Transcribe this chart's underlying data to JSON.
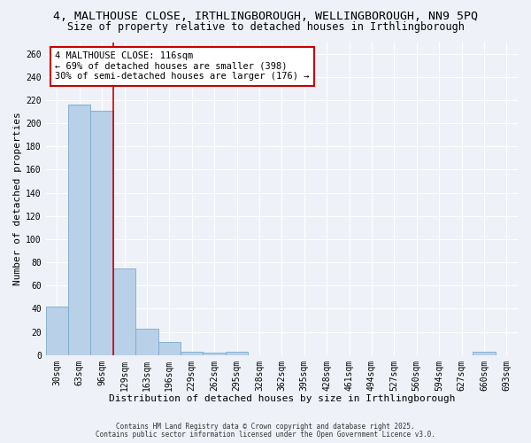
{
  "title1": "4, MALTHOUSE CLOSE, IRTHLINGBOROUGH, WELLINGBOROUGH, NN9 5PQ",
  "title2": "Size of property relative to detached houses in Irthlingborough",
  "categories": [
    "30sqm",
    "63sqm",
    "96sqm",
    "129sqm",
    "163sqm",
    "196sqm",
    "229sqm",
    "262sqm",
    "295sqm",
    "328sqm",
    "362sqm",
    "395sqm",
    "428sqm",
    "461sqm",
    "494sqm",
    "527sqm",
    "560sqm",
    "594sqm",
    "627sqm",
    "660sqm",
    "693sqm"
  ],
  "values": [
    42,
    216,
    211,
    75,
    23,
    11,
    3,
    2,
    3,
    0,
    0,
    0,
    0,
    0,
    0,
    0,
    0,
    0,
    0,
    3,
    0
  ],
  "bar_color": "#b8d0e8",
  "bar_edge_color": "#7aaaca",
  "vline_color": "#cc0000",
  "vline_x_index": 2.5,
  "annotation_text": "4 MALTHOUSE CLOSE: 116sqm\n← 69% of detached houses are smaller (398)\n30% of semi-detached houses are larger (176) →",
  "annotation_box_color": "#ffffff",
  "annotation_box_edge": "#cc0000",
  "xlabel": "Distribution of detached houses by size in Irthlingborough",
  "ylabel": "Number of detached properties",
  "ylim": [
    0,
    270
  ],
  "yticks": [
    0,
    20,
    40,
    60,
    80,
    100,
    120,
    140,
    160,
    180,
    200,
    220,
    240,
    260
  ],
  "footnote1": "Contains HM Land Registry data © Crown copyright and database right 2025.",
  "footnote2": "Contains public sector information licensed under the Open Government Licence v3.0.",
  "bg_color": "#eef2f8",
  "grid_color": "#ffffff",
  "title_fontsize": 9.5,
  "subtitle_fontsize": 8.5,
  "axis_label_fontsize": 8,
  "tick_fontsize": 7,
  "annot_fontsize": 7.5,
  "footnote_fontsize": 5.5
}
